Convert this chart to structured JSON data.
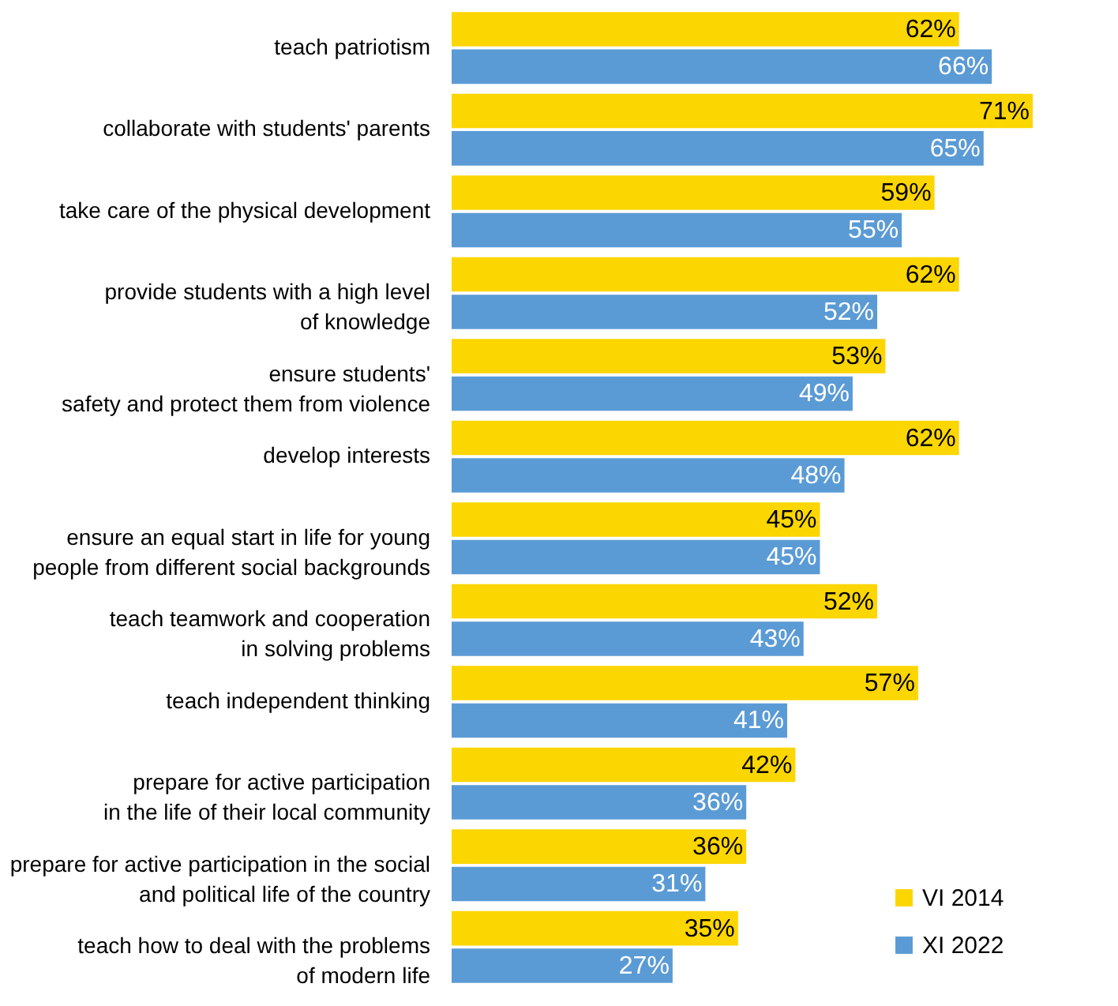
{
  "chart_data": {
    "type": "bar",
    "orientation": "horizontal",
    "legend": "bottom right",
    "categories": [
      "teach patriotism",
      "collaborate with students' parents",
      "take care of the physical development",
      "provide students with a high level\nof knowledge",
      "ensure students'\nsafety and protect them from violence",
      "develop interests",
      "ensure an equal start in life for young\npeople from different social backgrounds",
      "teach teamwork and cooperation\nin solving problems",
      "teach independent thinking",
      "prepare for active participation\nin the life of their local community",
      "prepare for active participation in the social\nand political life of the country",
      "teach how to deal with the problems\nof modern life"
    ],
    "series": [
      {
        "name": "VI 2014",
        "color": "#fcd600",
        "values": [
          62,
          71,
          59,
          62,
          53,
          62,
          45,
          52,
          57,
          42,
          36,
          35
        ],
        "value_labels": [
          "62%",
          "71%",
          "59%",
          "62%",
          "53%",
          "62%",
          "45%",
          "52%",
          "57%",
          "42%",
          "36%",
          "35%"
        ]
      },
      {
        "name": "XI 2022",
        "color": "#5b9bd5",
        "values": [
          66,
          65,
          55,
          52,
          49,
          48,
          45,
          43,
          41,
          36,
          31,
          27
        ],
        "value_labels": [
          "66%",
          "65%",
          "55%",
          "52%",
          "49%",
          "48%",
          "45%",
          "43%",
          "41%",
          "36%",
          "31%",
          "27%"
        ]
      }
    ]
  }
}
